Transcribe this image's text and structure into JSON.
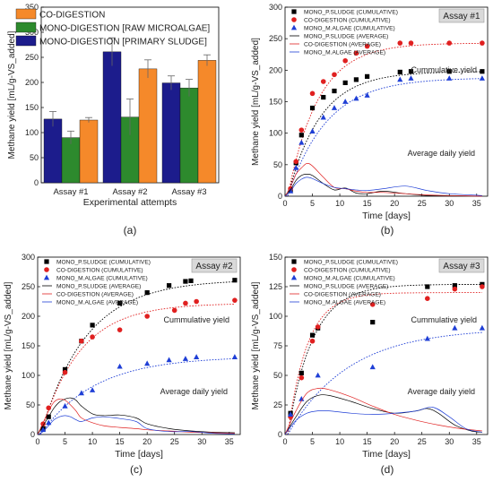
{
  "panel_labels": [
    "(a)",
    "(b)",
    "(c)",
    "(d)"
  ],
  "colors": {
    "co": "#f5892a",
    "raw": "#2d8a2d",
    "primary": "#1c1c8c",
    "sludge": "#000000",
    "algae": "#1f3fd6",
    "codig": "#e02020",
    "assay_badge_bg": "#d9d9d9"
  },
  "chart_data": [
    {
      "type": "bar",
      "categories": [
        "Assay #1",
        "Assay #2",
        "Assay #3"
      ],
      "series": [
        {
          "name": "MONO-DIGESTION [PRIMARY SLUDGE]",
          "values": [
            127,
            261,
            199
          ],
          "errors": [
            15,
            28,
            14
          ],
          "color_key": "primary"
        },
        {
          "name": "MONO-DIGESTION [RAW MICROALGAE]",
          "values": [
            90,
            131,
            189
          ],
          "errors": [
            13,
            36,
            17
          ],
          "color_key": "raw"
        },
        {
          "name": "CO-DIGESTION",
          "values": [
            125,
            227,
            244
          ],
          "errors": [
            5,
            18,
            11
          ],
          "color_key": "co"
        }
      ],
      "legend_order": [
        2,
        1,
        0
      ],
      "xlabel": "Experimental attempts",
      "ylabel": "Methane yield [mL/g-VS_added]",
      "ylim": [
        0,
        350
      ],
      "yticks": [
        0,
        50,
        100,
        150,
        200,
        250,
        300,
        350
      ],
      "legend": "top-left"
    },
    {
      "type": "scatter",
      "badge": "Assay #1",
      "xlabel": "Time [days]",
      "ylabel": "Methane yield [mL/g-VS_added]",
      "xlim": [
        0,
        37
      ],
      "ylim": [
        0,
        300
      ],
      "xticks": [
        0,
        5,
        10,
        15,
        20,
        25,
        30,
        35
      ],
      "yticks": [
        0,
        50,
        100,
        150,
        200,
        250,
        300
      ],
      "annotations": [
        "Cummulative yield",
        "Average daily yield"
      ],
      "series": [
        {
          "name": "MONO_P.SLUDGE (CUMULATIVE)",
          "marker": "square",
          "color_key": "sludge",
          "x": [
            1,
            2,
            3,
            5,
            7,
            9,
            11,
            13,
            15,
            21,
            23,
            30,
            36
          ],
          "y": [
            10,
            53,
            97,
            140,
            157,
            167,
            180,
            185,
            190,
            197,
            198,
            198,
            198
          ]
        },
        {
          "name": "CO-DIGESTION (CUMULATIVE)",
          "marker": "circle",
          "color_key": "codig",
          "x": [
            1,
            2,
            3,
            5,
            7,
            9,
            11,
            13,
            15,
            21,
            23,
            30,
            36
          ],
          "y": [
            12,
            55,
            105,
            163,
            182,
            193,
            215,
            227,
            238,
            243,
            243,
            243,
            243
          ]
        },
        {
          "name": "MONO_M.ALGAE (CUMULATIVE)",
          "marker": "triangle",
          "color_key": "algae",
          "x": [
            1,
            2,
            3,
            5,
            7,
            9,
            11,
            13,
            15,
            21,
            23,
            30,
            36
          ],
          "y": [
            8,
            45,
            85,
            103,
            125,
            140,
            150,
            155,
            160,
            185,
            187,
            187,
            187
          ]
        },
        {
          "name": "MONO_P.SLUDGE (AVERAGE)",
          "marker": "line",
          "color_key": "sludge",
          "x": [
            0,
            1,
            2,
            3,
            4,
            5,
            7,
            9,
            11,
            13,
            15,
            18,
            22,
            26,
            30,
            36
          ],
          "y": [
            0,
            10,
            25,
            33,
            35,
            33,
            20,
            10,
            13,
            5,
            4,
            8,
            4,
            1,
            1,
            0
          ]
        },
        {
          "name": "CO-DIGESTION (AVERAGE)",
          "marker": "line",
          "color_key": "codig",
          "x": [
            0,
            1,
            2,
            3,
            4,
            5,
            7,
            9,
            11,
            13,
            15,
            18,
            22,
            26,
            30,
            36
          ],
          "y": [
            0,
            15,
            35,
            45,
            52,
            48,
            30,
            14,
            12,
            8,
            6,
            6,
            4,
            2,
            1,
            0
          ]
        },
        {
          "name": "MONO_M.ALGAE (AVERAGE)",
          "marker": "line",
          "color_key": "algae",
          "x": [
            0,
            1,
            2,
            3,
            4,
            5,
            7,
            9,
            11,
            13,
            15,
            18,
            22,
            26,
            30,
            36
          ],
          "y": [
            0,
            8,
            20,
            27,
            30,
            28,
            20,
            14,
            12,
            10,
            9,
            12,
            16,
            9,
            4,
            1
          ]
        }
      ],
      "fits": [
        {
          "color_key": "sludge",
          "asymptote": 198,
          "rate": 0.17,
          "lag": 0.5
        },
        {
          "color_key": "codig",
          "asymptote": 243,
          "rate": 0.18,
          "lag": 0.5
        },
        {
          "color_key": "algae",
          "asymptote": 188,
          "rate": 0.14,
          "lag": 0.5
        }
      ]
    },
    {
      "type": "scatter",
      "badge": "Assay #2",
      "xlabel": "Time [days]",
      "ylabel": "Methane yield [mL/g-VS_added]",
      "xlim": [
        0,
        37
      ],
      "ylim": [
        0,
        300
      ],
      "xticks": [
        0,
        5,
        10,
        15,
        20,
        25,
        30,
        35
      ],
      "yticks": [
        0,
        50,
        100,
        150,
        200,
        250,
        300
      ],
      "annotations": [
        "Cummulative yield",
        "Average daily yield"
      ],
      "series": [
        {
          "name": "MONO_P.SLUDGE (CUMULATIVE)",
          "marker": "square",
          "color_key": "sludge",
          "x": [
            1,
            2,
            5,
            8,
            10,
            15,
            20,
            24,
            27,
            28,
            36
          ],
          "y": [
            10,
            30,
            110,
            158,
            185,
            222,
            240,
            252,
            259,
            260,
            261
          ]
        },
        {
          "name": "CO-DIGESTION (CUMULATIVE)",
          "marker": "circle",
          "color_key": "codig",
          "x": [
            1,
            2,
            5,
            8,
            10,
            15,
            20,
            25,
            27,
            29,
            36
          ],
          "y": [
            18,
            45,
            105,
            158,
            165,
            177,
            200,
            210,
            222,
            225,
            227
          ]
        },
        {
          "name": "MONO_M.ALGAE (CUMULATIVE)",
          "marker": "triangle",
          "color_key": "algae",
          "x": [
            1,
            2,
            5,
            8,
            10,
            15,
            20,
            24,
            27,
            29,
            36
          ],
          "y": [
            8,
            20,
            48,
            70,
            75,
            115,
            120,
            126,
            128,
            131,
            131
          ]
        },
        {
          "name": "MONO_P.SLUDGE (AVERAGE)",
          "marker": "line",
          "color_key": "sludge",
          "x": [
            0,
            1,
            2,
            3,
            4,
            5,
            6,
            7,
            8,
            10,
            12,
            15,
            18,
            20,
            24,
            28,
            32,
            36
          ],
          "y": [
            0,
            15,
            30,
            45,
            55,
            60,
            62,
            58,
            48,
            35,
            32,
            33,
            28,
            18,
            10,
            6,
            4,
            3
          ]
        },
        {
          "name": "CO-DIGESTION (AVERAGE)",
          "marker": "line",
          "color_key": "codig",
          "x": [
            0,
            1,
            2,
            3,
            4,
            5,
            6,
            7,
            8,
            10,
            12,
            15,
            18,
            20,
            24,
            28,
            32,
            36
          ],
          "y": [
            0,
            20,
            40,
            55,
            60,
            58,
            50,
            40,
            28,
            20,
            15,
            12,
            10,
            8,
            6,
            4,
            3,
            2
          ]
        },
        {
          "name": "MONO_M.ALGAE (AVERAGE)",
          "marker": "line",
          "color_key": "algae",
          "x": [
            0,
            1,
            2,
            3,
            4,
            5,
            6,
            7,
            8,
            10,
            12,
            15,
            18,
            20,
            24,
            28,
            32,
            36
          ],
          "y": [
            0,
            5,
            15,
            25,
            30,
            32,
            30,
            25,
            22,
            28,
            30,
            27,
            22,
            10,
            5,
            5,
            2,
            1
          ]
        }
      ],
      "fits": [
        {
          "color_key": "sludge",
          "asymptote": 262,
          "rate": 0.12,
          "lag": 0.5
        },
        {
          "color_key": "codig",
          "asymptote": 222,
          "rate": 0.14,
          "lag": 0.5
        },
        {
          "color_key": "algae",
          "asymptote": 132,
          "rate": 0.1,
          "lag": 0.5
        }
      ]
    },
    {
      "type": "scatter",
      "badge": "Assay #3",
      "xlabel": "Time [days]",
      "ylabel": "Methane yield [mL/g-VS_added]",
      "xlim": [
        0,
        37
      ],
      "ylim": [
        0,
        150
      ],
      "xticks": [
        0,
        5,
        10,
        15,
        20,
        25,
        30,
        35
      ],
      "yticks": [
        0,
        25,
        50,
        75,
        100,
        125,
        150
      ],
      "annotations": [
        "Cummulative yield",
        "Average daily yield"
      ],
      "series": [
        {
          "name": "MONO_P.SLUDGE (CUMULATIVE)",
          "marker": "square",
          "color_key": "sludge",
          "x": [
            1,
            3,
            5,
            6,
            16,
            26,
            31,
            36
          ],
          "y": [
            18,
            52,
            84,
            90,
            95,
            125,
            126,
            127
          ]
        },
        {
          "name": "CO-DIGESTION (CUMULATIVE)",
          "marker": "circle",
          "color_key": "codig",
          "x": [
            1,
            3,
            5,
            6,
            16,
            26,
            31,
            36
          ],
          "y": [
            15,
            48,
            79,
            91,
            110,
            115,
            123,
            125
          ]
        },
        {
          "name": "MONO_M.ALGAE (CUMULATIVE)",
          "marker": "triangle",
          "color_key": "algae",
          "x": [
            1,
            3,
            6,
            16,
            26,
            31,
            36
          ],
          "y": [
            17,
            30,
            50,
            57,
            81,
            90,
            90
          ]
        },
        {
          "name": "MONO_P.SLUDGE (AVERAGE)",
          "marker": "line",
          "color_key": "sludge",
          "x": [
            0,
            2,
            4,
            6,
            8,
            12,
            16,
            20,
            24,
            26,
            28,
            31,
            34,
            36
          ],
          "y": [
            0,
            15,
            28,
            33,
            33,
            28,
            22,
            18,
            20,
            22,
            18,
            8,
            3,
            2
          ]
        },
        {
          "name": "CO-DIGESTION (AVERAGE)",
          "marker": "line",
          "color_key": "codig",
          "x": [
            0,
            2,
            4,
            6,
            8,
            12,
            16,
            20,
            24,
            28,
            32,
            36
          ],
          "y": [
            0,
            20,
            35,
            39,
            38,
            32,
            24,
            17,
            12,
            8,
            5,
            3
          ]
        },
        {
          "name": "MONO_M.ALGAE (AVERAGE)",
          "marker": "line",
          "color_key": "algae",
          "x": [
            0,
            2,
            4,
            6,
            8,
            12,
            16,
            20,
            24,
            27,
            30,
            33,
            36
          ],
          "y": [
            0,
            12,
            18,
            20,
            20,
            18,
            17,
            18,
            20,
            23,
            15,
            5,
            2
          ]
        }
      ],
      "fits": [
        {
          "color_key": "sludge",
          "asymptote": 127,
          "rate": 0.22,
          "lag": 0.5
        },
        {
          "color_key": "codig",
          "asymptote": 120,
          "rate": 0.28,
          "lag": 0.5
        },
        {
          "color_key": "algae",
          "asymptote": 90,
          "rate": 0.09,
          "lag": 0.5
        }
      ]
    }
  ]
}
